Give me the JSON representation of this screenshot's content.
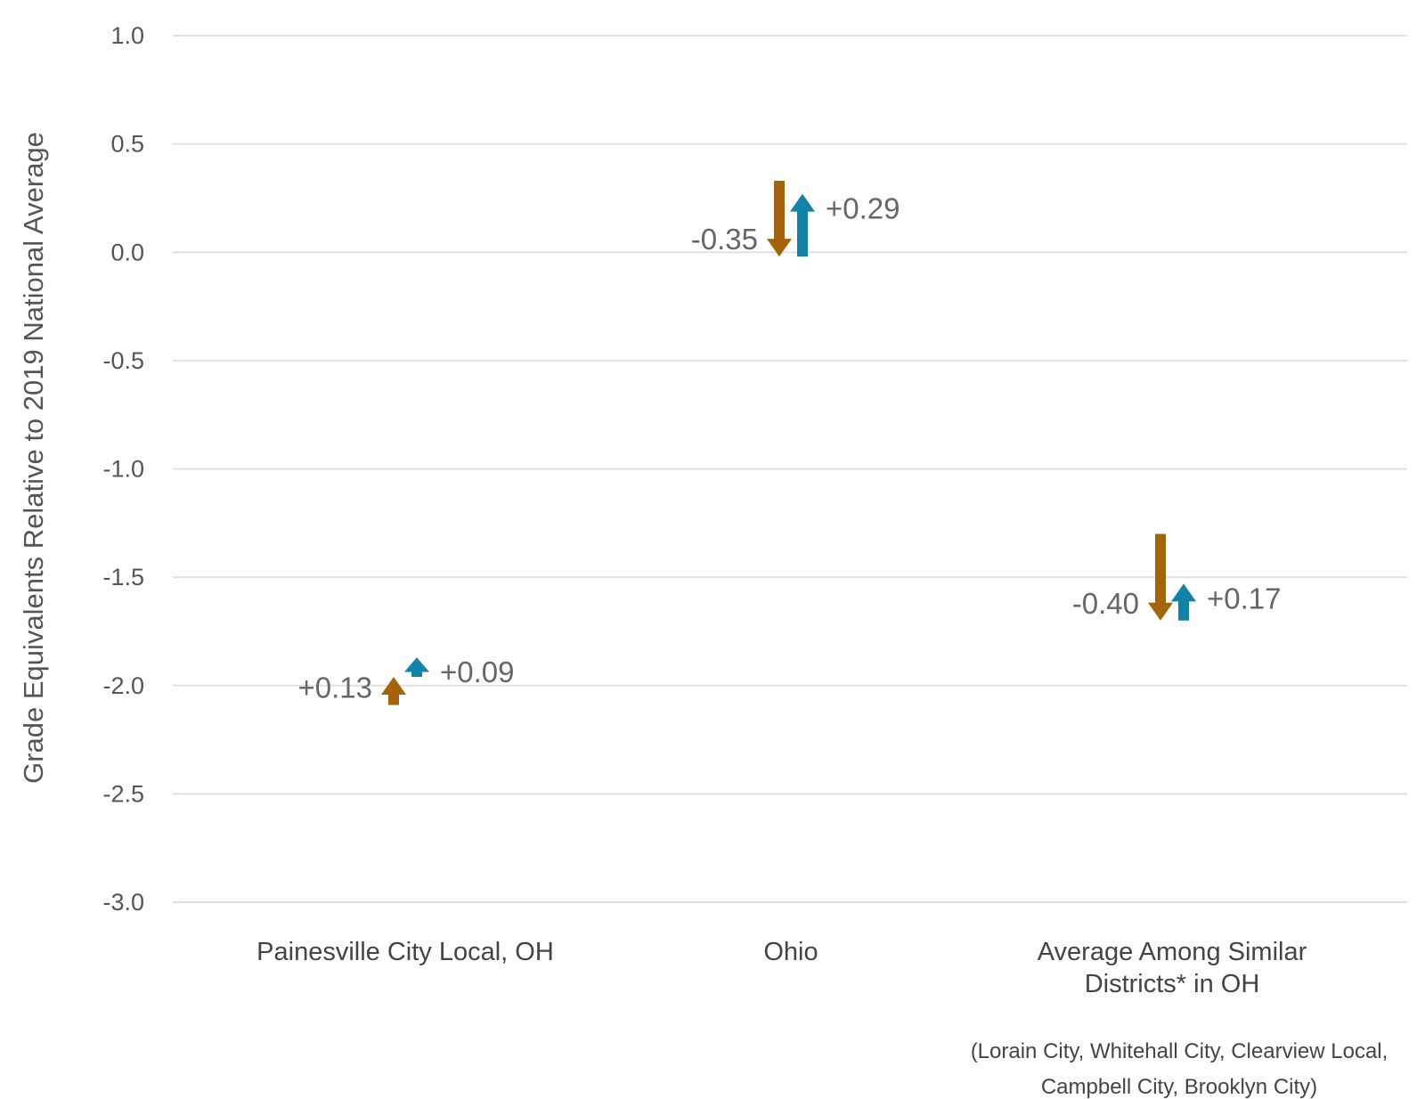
{
  "chart_data": {
    "type": "arrow",
    "ylabel": "Grade Equivalents Relative to 2019 National Average",
    "ylim": [
      -3.0,
      1.0
    ],
    "yticks": [
      "1.0",
      "0.5",
      "0.0",
      "-0.5",
      "-1.0",
      "-1.5",
      "-2.0",
      "-2.5",
      "-3.0"
    ],
    "ytick_values": [
      1.0,
      0.5,
      0.0,
      -0.5,
      -1.0,
      -1.5,
      -2.0,
      -2.5,
      -3.0
    ],
    "grid": true,
    "colors": {
      "first": "#A5640A",
      "second": "#1283A8"
    },
    "categories": [
      {
        "lines": [
          "Painesville City Local, OH"
        ],
        "first": {
          "start": -2.09,
          "end": -1.96,
          "label": "+0.13"
        },
        "second": {
          "start": -1.96,
          "end": -1.87,
          "label": "+0.09"
        }
      },
      {
        "lines": [
          "Ohio"
        ],
        "first": {
          "start": 0.33,
          "end": -0.02,
          "label": "-0.35"
        },
        "second": {
          "start": -0.02,
          "end": 0.27,
          "label": "+0.29"
        }
      },
      {
        "lines": [
          "Average Among Similar",
          "Districts* in OH"
        ],
        "first": {
          "start": -1.3,
          "end": -1.7,
          "label": "-0.40"
        },
        "second": {
          "start": -1.7,
          "end": -1.53,
          "label": "+0.17"
        }
      }
    ],
    "footnote": [
      "(Lorain City, Whitehall City, Clearview Local,",
      "Campbell City, Brooklyn City)"
    ]
  }
}
